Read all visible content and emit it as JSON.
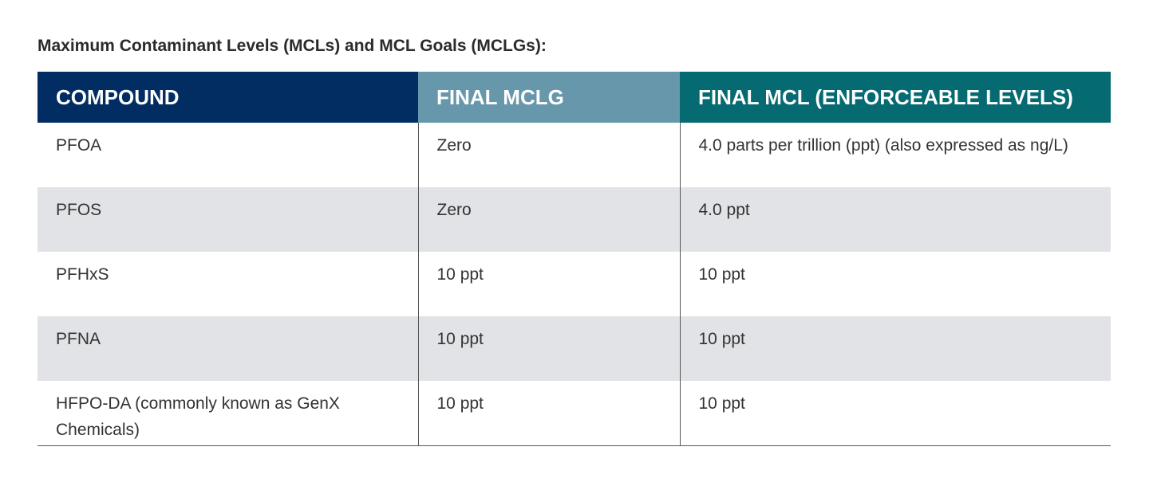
{
  "title": "Maximum Contaminant Levels (MCLs) and MCL Goals (MCLGs):",
  "table": {
    "headers": [
      "COMPOUND",
      "FINAL MCLG",
      "FINAL MCL (ENFORCEABLE LEVELS)"
    ],
    "rows": [
      [
        "PFOA",
        "Zero",
        "4.0 parts per trillion (ppt) (also expressed as ng/L)"
      ],
      [
        "PFOS",
        "Zero",
        "4.0 ppt"
      ],
      [
        "PFHxS",
        "10 ppt",
        "10 ppt"
      ],
      [
        "PFNA",
        "10 ppt",
        "10 ppt"
      ],
      [
        "HFPO-DA (commonly known as GenX Chemicals)",
        "10 ppt",
        "10 ppt"
      ]
    ]
  }
}
